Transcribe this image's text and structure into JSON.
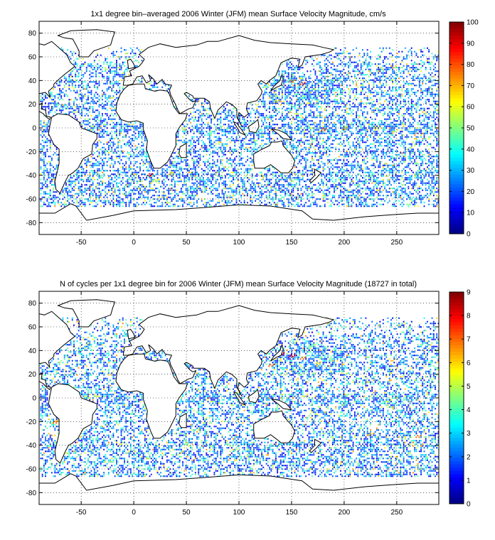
{
  "chart_data": [
    {
      "type": "heatmap",
      "title": "1x1 degree bin–averaged 2006 Winter (JFM) mean Surface Velocity Magnitude, cm/s",
      "xlim": [
        -90,
        290
      ],
      "ylim": [
        -90,
        90
      ],
      "xticks": [
        -50,
        0,
        50,
        100,
        150,
        200,
        250
      ],
      "xticklabels": [
        "-50",
        "0",
        "50",
        "100",
        "150",
        "200",
        "250"
      ],
      "yticks": [
        80,
        60,
        40,
        20,
        0,
        -20,
        -40,
        -60,
        -80
      ],
      "yticklabels": [
        "80",
        "60",
        "40",
        "20",
        "0",
        "-20",
        "-40",
        "-60",
        "-80"
      ],
      "colorbar": {
        "range": [
          0,
          100
        ],
        "ticks": [
          0,
          10,
          20,
          30,
          40,
          50,
          60,
          70,
          80,
          90,
          100
        ],
        "ticklabels": [
          "0",
          "10",
          "20",
          "30",
          "40",
          "50",
          "60",
          "70",
          "80",
          "90",
          "100"
        ],
        "colormap": "jet"
      },
      "grid": "dotted",
      "hotspots": [
        {
          "lon": 160,
          "lat": 38,
          "value": 85
        },
        {
          "lon": 150,
          "lat": 40,
          "value": 75
        },
        {
          "lon": 180,
          "lat": -1,
          "value": 80
        },
        {
          "lon": 200,
          "lat": 0,
          "value": 70
        },
        {
          "lon": 15,
          "lat": -39,
          "value": 90
        },
        {
          "lon": 35,
          "lat": -38,
          "value": 70
        },
        {
          "lon": 135,
          "lat": 23,
          "value": 65
        },
        {
          "lon": 20,
          "lat": -44,
          "value": 60
        },
        {
          "lon": 230,
          "lat": 1,
          "value": 60
        }
      ]
    },
    {
      "type": "heatmap",
      "title": "N of cycles per 1x1 degree bin for 2006 Winter (JFM) mean Surface Velocity Magnitude (18727 in total)",
      "xlim": [
        -90,
        290
      ],
      "ylim": [
        -90,
        90
      ],
      "xticks": [
        -50,
        0,
        50,
        100,
        150,
        200,
        250
      ],
      "xticklabels": [
        "-50",
        "0",
        "50",
        "100",
        "150",
        "200",
        "250"
      ],
      "yticks": [
        80,
        60,
        40,
        20,
        0,
        -20,
        -40,
        -60,
        -80
      ],
      "yticklabels": [
        "80",
        "60",
        "40",
        "20",
        "0",
        "-20",
        "-40",
        "-60",
        "-80"
      ],
      "colorbar": {
        "range": [
          0,
          9
        ],
        "ticks": [
          0,
          1,
          2,
          3,
          4,
          5,
          6,
          7,
          8,
          9
        ],
        "ticklabels": [
          "0",
          "1",
          "2",
          "3",
          "4",
          "5",
          "6",
          "7",
          "8",
          "9"
        ],
        "colormap": "jet"
      },
      "grid": "dotted",
      "hotspots": [
        {
          "lon": 150,
          "lat": 36,
          "value": 8
        },
        {
          "lon": 160,
          "lat": 34,
          "value": 7
        },
        {
          "lon": 140,
          "lat": 38,
          "value": 8
        },
        {
          "lon": 130,
          "lat": 28,
          "value": 7
        },
        {
          "lon": 175,
          "lat": 30,
          "value": 6
        },
        {
          "lon": -75,
          "lat": -20,
          "value": 7
        },
        {
          "lon": 225,
          "lat": -30,
          "value": 6
        },
        {
          "lon": 270,
          "lat": -32,
          "value": 7
        }
      ]
    }
  ]
}
